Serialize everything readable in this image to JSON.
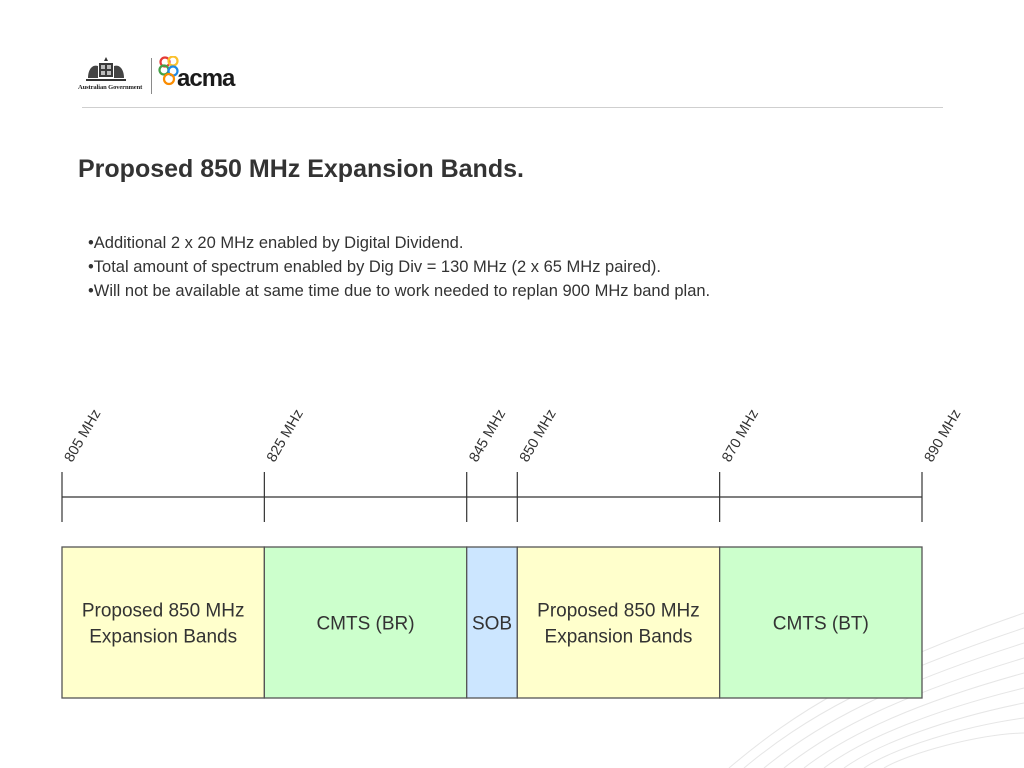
{
  "header": {
    "government_label": "Australian Government",
    "logo_text": "acma"
  },
  "title": "Proposed 850 MHz Expansion Bands.",
  "bullets": [
    "•Additional 2 x 20 MHz enabled by Digital Dividend.",
    "•Total amount of spectrum enabled by Dig Div = 130 MHz (2 x 65 MHz paired).",
    "•Will not be available at same time due to work needed to replan 900 MHz band plan."
  ],
  "band_plan": {
    "range_mhz": [
      805,
      890
    ],
    "frequency_labels": [
      {
        "mhz": 805,
        "label": "805 MHz"
      },
      {
        "mhz": 825,
        "label": "825 MHz"
      },
      {
        "mhz": 845,
        "label": "845 MHz"
      },
      {
        "mhz": 850,
        "label": "850 MHz"
      },
      {
        "mhz": 870,
        "label": "870 MHz"
      },
      {
        "mhz": 890,
        "label": "890 MHz"
      }
    ],
    "blocks": [
      {
        "from": 805,
        "to": 825,
        "lines": [
          "Proposed 850 MHz",
          "Expansion Bands"
        ],
        "color": "#ffffcc"
      },
      {
        "from": 825,
        "to": 845,
        "lines": [
          "CMTS (BR)"
        ],
        "color": "#ccffcc"
      },
      {
        "from": 845,
        "to": 850,
        "lines": [
          "SOB"
        ],
        "color": "#cce6ff"
      },
      {
        "from": 850,
        "to": 870,
        "lines": [
          "Proposed 850 MHz",
          "Expansion Bands"
        ],
        "color": "#ffffcc"
      },
      {
        "from": 870,
        "to": 890,
        "lines": [
          "CMTS (BT)"
        ],
        "color": "#ccffcc"
      }
    ]
  }
}
